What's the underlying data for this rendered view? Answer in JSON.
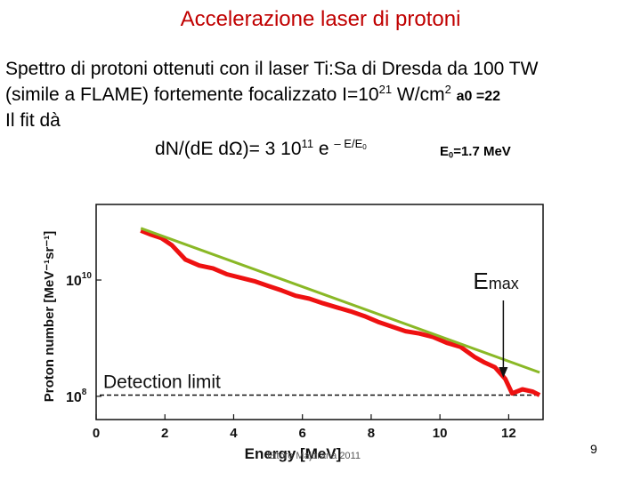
{
  "slide": {
    "title": "Accelerazione laser di protoni",
    "line1": "Spettro di protoni ottenuti con il laser Ti:Sa  di Dresda da  100 TW",
    "line2_a": "(simile a FLAME) fortemente focalizzato I=10",
    "line2_exp": "21",
    "line2_b": " W/cm",
    "line2_exp2": "2",
    "line2_c": "a0 =22",
    "line3": "Il fit dà",
    "formula_a": "d",
    "formula_b": "N/(dE dΩ)=  3 10",
    "formula_exp": "11",
    "formula_c": " e ",
    "formula_exp2": "– E/E",
    "formula_sub": "0",
    "e0_a": "E",
    "e0_sub": "0",
    "e0_b": "=1.7 MeV",
    "footer": "Ettore Majorana 2011",
    "page_number": "9"
  },
  "chart_data": {
    "type": "line",
    "xlabel": "Energy  [MeV]",
    "ylabel": "Proton number [MeV⁻¹sr⁻¹]",
    "x_ticks": [
      "0",
      "2",
      "4",
      "6",
      "8",
      "10",
      "12"
    ],
    "y_ticks": [
      {
        "base": "10",
        "exp": "10"
      },
      {
        "base": "10",
        "exp": "8"
      }
    ],
    "xlim": [
      0,
      13
    ],
    "ylim_log10": [
      7.6,
      11.3
    ],
    "annotations": {
      "detection_label": "Detection limit",
      "emax_base": "E",
      "emax_sub": "max"
    },
    "detection_limit_log10": 8.02,
    "emax_x": 12.0,
    "series": [
      {
        "name": "measured",
        "color": "#ee1111",
        "x": [
          1.3,
          1.6,
          1.9,
          2.2,
          2.6,
          3.0,
          3.4,
          3.8,
          4.2,
          4.6,
          5.0,
          5.4,
          5.8,
          6.2,
          6.6,
          7.0,
          7.4,
          7.8,
          8.2,
          8.6,
          9.0,
          9.4,
          9.8,
          10.2,
          10.6,
          11.0,
          11.3,
          11.6,
          11.9,
          12.1,
          12.4,
          12.7,
          12.9
        ],
        "y_log10": [
          10.85,
          10.78,
          10.72,
          10.6,
          10.35,
          10.25,
          10.2,
          10.1,
          10.04,
          9.98,
          9.9,
          9.82,
          9.73,
          9.68,
          9.6,
          9.53,
          9.46,
          9.38,
          9.28,
          9.2,
          9.12,
          9.08,
          9.02,
          8.92,
          8.85,
          8.68,
          8.58,
          8.5,
          8.3,
          8.05,
          8.12,
          8.08,
          8.02
        ]
      },
      {
        "name": "fit",
        "color": "#8ab826",
        "x": [
          1.3,
          12.9
        ],
        "y_log10": [
          10.89,
          8.41
        ]
      }
    ]
  }
}
